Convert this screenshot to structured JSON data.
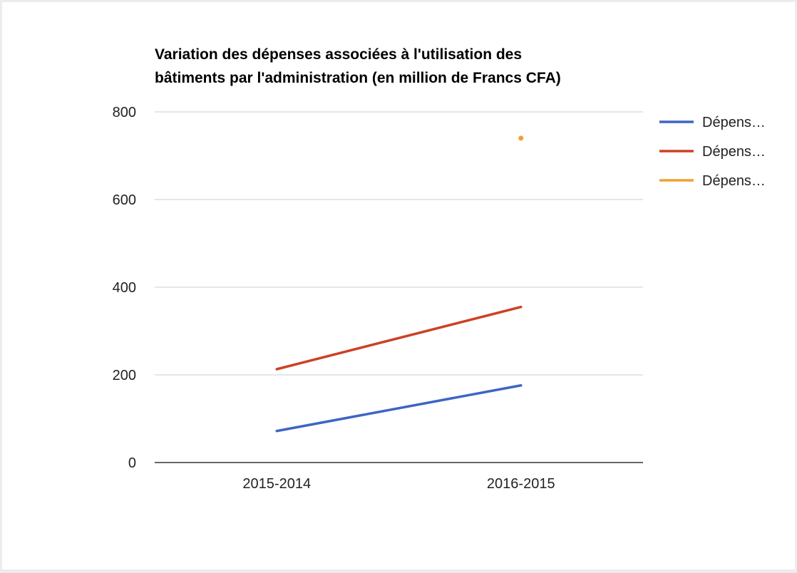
{
  "chart_data": {
    "type": "line",
    "title_lines": [
      "Variation des dépenses associées à l'utilisation des",
      "bâtiments par l'administration (en million de Francs CFA)"
    ],
    "xlabel": "",
    "ylabel": "",
    "categories": [
      "2015-2014",
      "2016-2015"
    ],
    "ylim": [
      0,
      800
    ],
    "yticks": [
      0,
      200,
      400,
      600,
      800
    ],
    "grid": true,
    "legend_position": "right",
    "series": [
      {
        "name": "Dépens…",
        "color": "#3d65c4",
        "values": [
          72,
          176
        ]
      },
      {
        "name": "Dépens…",
        "color": "#cc4125",
        "values": [
          213,
          355
        ]
      },
      {
        "name": "Dépens…",
        "color": "#f1a032",
        "values": [
          null,
          740
        ]
      }
    ]
  }
}
